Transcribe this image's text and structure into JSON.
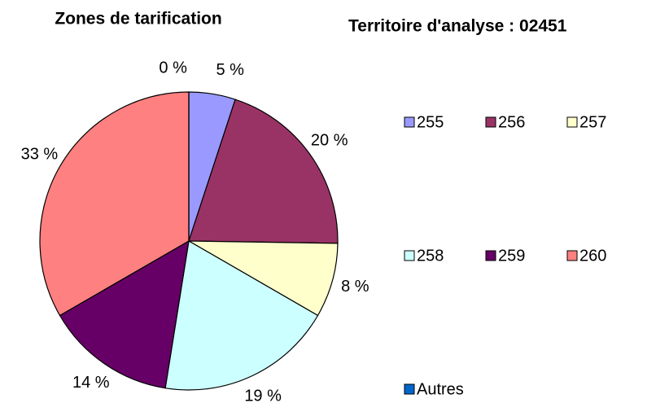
{
  "chart_data": {
    "type": "pie",
    "title": "Zones de tarification",
    "subtitle": "Territoire d'analyse : 02451",
    "categories": [
      "255",
      "256",
      "257",
      "258",
      "259",
      "260",
      "Autres"
    ],
    "values": [
      5,
      20,
      8,
      19,
      14,
      33,
      0
    ],
    "value_labels": [
      "5 %",
      "20 %",
      "8 %",
      "19 %",
      "14 %",
      "33 %",
      "0 %"
    ],
    "colors": [
      "#9999ff",
      "#993366",
      "#ffffcc",
      "#ccffff",
      "#660066",
      "#ff8080",
      "#0066cc"
    ],
    "legend": "right"
  }
}
